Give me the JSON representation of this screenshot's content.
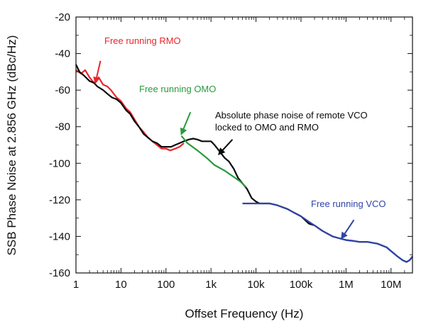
{
  "chart_data": {
    "type": "line",
    "title": "",
    "xlabel": "Offset Frequency (Hz)",
    "ylabel": "SSB Phase Noise at 2.856 GHz (dBc/Hz)",
    "x_scale": "log",
    "xlim": [
      1,
      30000000
    ],
    "ylim": [
      -160,
      -20
    ],
    "grid": false,
    "x_ticks": [
      {
        "value": 1,
        "label": "1"
      },
      {
        "value": 10,
        "label": "10"
      },
      {
        "value": 100,
        "label": "100"
      },
      {
        "value": 1000,
        "label": "1k"
      },
      {
        "value": 10000,
        "label": "10k"
      },
      {
        "value": 100000,
        "label": "100k"
      },
      {
        "value": 1000000,
        "label": "1M"
      },
      {
        "value": 10000000,
        "label": "10M"
      }
    ],
    "y_ticks": [
      {
        "value": -20,
        "label": "-20"
      },
      {
        "value": -40,
        "label": "-40"
      },
      {
        "value": -60,
        "label": "-60"
      },
      {
        "value": -80,
        "label": "-80"
      },
      {
        "value": -100,
        "label": "-100"
      },
      {
        "value": -120,
        "label": "-120"
      },
      {
        "value": -140,
        "label": "-140"
      },
      {
        "value": -160,
        "label": "-160"
      }
    ],
    "series": [
      {
        "color": "#e8262b",
        "points": [
          [
            1,
            -49
          ],
          [
            1.3,
            -51
          ],
          [
            1.6,
            -49
          ],
          [
            2,
            -53
          ],
          [
            2.5,
            -56
          ],
          [
            3.2,
            -53
          ],
          [
            4,
            -57
          ],
          [
            5,
            -58
          ],
          [
            6,
            -60
          ],
          [
            8,
            -64
          ],
          [
            10,
            -66
          ],
          [
            13,
            -70
          ],
          [
            16,
            -72
          ],
          [
            20,
            -76
          ],
          [
            25,
            -80
          ],
          [
            32,
            -83
          ],
          [
            40,
            -86
          ],
          [
            50,
            -88
          ],
          [
            63,
            -90
          ],
          [
            80,
            -92
          ],
          [
            100,
            -92
          ],
          [
            125,
            -93
          ],
          [
            160,
            -92
          ],
          [
            200,
            -91
          ],
          [
            250,
            -89
          ]
        ]
      },
      {
        "color": "#0a0a0a",
        "points": [
          [
            1,
            -46
          ],
          [
            1.2,
            -50
          ],
          [
            1.5,
            -52
          ],
          [
            2,
            -55
          ],
          [
            2.5,
            -56
          ],
          [
            3,
            -58
          ],
          [
            4,
            -60
          ],
          [
            5,
            -62
          ],
          [
            6.3,
            -64
          ],
          [
            8,
            -65
          ],
          [
            10,
            -67
          ],
          [
            13,
            -71
          ],
          [
            16,
            -73
          ],
          [
            20,
            -77
          ],
          [
            25,
            -80
          ],
          [
            32,
            -84
          ],
          [
            40,
            -86
          ],
          [
            50,
            -88
          ],
          [
            63,
            -89
          ],
          [
            80,
            -91
          ],
          [
            100,
            -91
          ],
          [
            130,
            -91
          ],
          [
            160,
            -90
          ],
          [
            200,
            -89
          ],
          [
            250,
            -88
          ],
          [
            320,
            -87
          ],
          [
            400,
            -86.5
          ],
          [
            500,
            -87
          ],
          [
            630,
            -88
          ],
          [
            800,
            -88
          ],
          [
            1000,
            -88
          ],
          [
            1200,
            -90
          ],
          [
            1500,
            -93
          ],
          [
            2000,
            -97
          ],
          [
            2500,
            -99
          ],
          [
            3200,
            -103
          ],
          [
            4000,
            -108
          ],
          [
            5000,
            -111
          ],
          [
            6300,
            -114
          ],
          [
            8000,
            -119
          ],
          [
            10000,
            -121
          ],
          [
            12000,
            -122
          ],
          [
            16000,
            -122
          ],
          [
            20000,
            -122
          ],
          [
            30000,
            -123
          ],
          [
            50000,
            -125
          ],
          [
            70000,
            -127
          ],
          [
            100000,
            -129
          ],
          [
            150000,
            -133
          ],
          [
            200000,
            -134
          ],
          [
            300000,
            -137
          ],
          [
            500000,
            -140
          ],
          [
            700000,
            -141
          ],
          [
            1000000,
            -142
          ],
          [
            1500000,
            -142.5
          ],
          [
            2000000,
            -143
          ],
          [
            3000000,
            -143
          ],
          [
            5000000,
            -144
          ],
          [
            8000000,
            -146
          ],
          [
            10000000,
            -148
          ],
          [
            14000000,
            -151
          ],
          [
            18000000,
            -153
          ],
          [
            22000000,
            -154
          ],
          [
            26000000,
            -153
          ],
          [
            30000000,
            -151
          ]
        ]
      },
      {
        "color": "#2a9a3c",
        "points": [
          [
            220,
            -85
          ],
          [
            300,
            -89
          ],
          [
            500,
            -93
          ],
          [
            800,
            -97
          ],
          [
            1200,
            -101
          ],
          [
            2000,
            -104
          ],
          [
            3000,
            -107
          ],
          [
            4500,
            -110
          ],
          [
            6000,
            -113
          ]
        ]
      },
      {
        "color": "#2f44a8",
        "points": [
          [
            5000,
            -122
          ],
          [
            8000,
            -122
          ],
          [
            12000,
            -122
          ],
          [
            20000,
            -122
          ],
          [
            30000,
            -123
          ],
          [
            50000,
            -125
          ],
          [
            70000,
            -127
          ],
          [
            100000,
            -129
          ],
          [
            150000,
            -132
          ],
          [
            200000,
            -134
          ],
          [
            300000,
            -137
          ],
          [
            500000,
            -140
          ],
          [
            700000,
            -141
          ],
          [
            1000000,
            -142
          ],
          [
            1500000,
            -142.5
          ],
          [
            2000000,
            -143
          ],
          [
            3000000,
            -143
          ],
          [
            5000000,
            -144
          ],
          [
            8000000,
            -146
          ],
          [
            10000000,
            -148
          ],
          [
            14000000,
            -151
          ],
          [
            18000000,
            -153
          ],
          [
            22000000,
            -154
          ],
          [
            26000000,
            -153
          ],
          [
            30000000,
            -151
          ]
        ]
      }
    ],
    "annotations": [
      {
        "lines": [
          "Free running RMO"
        ],
        "color": "#e8262b",
        "arrow_from": [
          3.5,
          -44
        ],
        "arrow_to": [
          2.7,
          -56
        ]
      },
      {
        "lines": [
          "Free running OMO"
        ],
        "color": "#2a9a3c",
        "arrow_from": [
          350,
          -72
        ],
        "arrow_to": [
          220,
          -84
        ]
      },
      {
        "lines": [
          "Absolute phase noise of remote VCO",
          "locked to OMO and RMO"
        ],
        "color": "#0a0a0a",
        "arrow_from": [
          3000,
          -87
        ],
        "arrow_to": [
          1500,
          -95
        ]
      },
      {
        "lines": [
          "Free running VCO"
        ],
        "color": "#2f44a8",
        "arrow_from": [
          1500000,
          -131
        ],
        "arrow_to": [
          800000,
          -141
        ]
      }
    ]
  }
}
